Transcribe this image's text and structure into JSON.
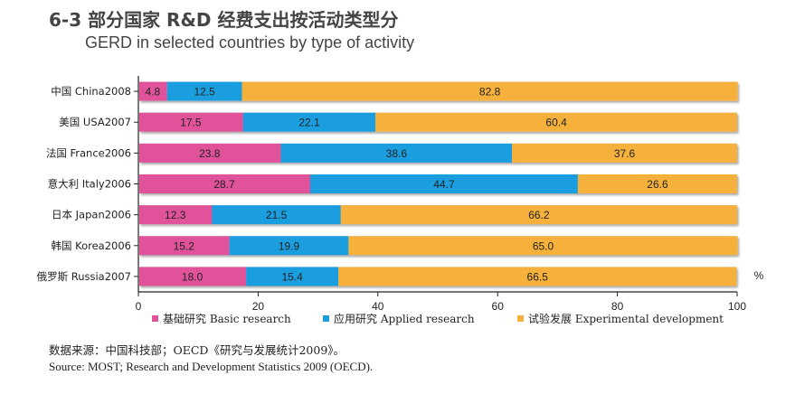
{
  "title_zh": "6-3 部分国家 R&D 经费支出按活动类型分",
  "title_en": "GERD in selected countries by type of activity",
  "source_zh": "数据来源：中国科技部；OECD《研究与发展统计2009》。",
  "source_en": "Source: MOST; Research and Development Statistics 2009 (OECD).",
  "chart_data": {
    "type": "bar",
    "orientation": "horizontal",
    "stacked": true,
    "categories": [
      "中国 China2008",
      "美国 USA2007",
      "法国 France2006",
      "意大利 Italy2006",
      "日本 Japan2006",
      "韩国 Korea2006",
      "俄罗斯 Russia2007"
    ],
    "series": [
      {
        "name": "基础研究 Basic research",
        "color": "#e0539a",
        "values": [
          4.8,
          17.5,
          23.8,
          28.7,
          12.3,
          15.2,
          18.0
        ]
      },
      {
        "name": "应用研究 Applied research",
        "color": "#1a9ee0",
        "values": [
          12.5,
          22.1,
          38.6,
          44.7,
          21.5,
          19.9,
          15.4
        ]
      },
      {
        "name": "试验发展 Experimental development",
        "color": "#f5b13c",
        "values": [
          82.8,
          60.4,
          37.6,
          26.6,
          66.2,
          65.0,
          66.5
        ]
      }
    ],
    "xlim": [
      0,
      100
    ],
    "xticks": [
      0,
      20,
      40,
      60,
      80,
      100
    ],
    "unit": "%",
    "grid": "none",
    "legend": "bottom"
  }
}
